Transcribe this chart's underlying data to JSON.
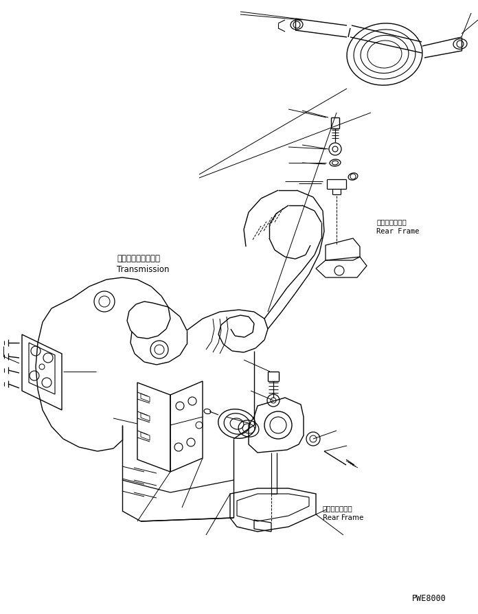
{
  "background_color": "#ffffff",
  "line_color": "#000000",
  "fig_width": 6.96,
  "fig_height": 8.95,
  "dpi": 100,
  "watermark": "PWE8000",
  "label_transmission_jp": "トランスミッション",
  "label_transmission_en": "Transmission",
  "label_rear_frame_jp": "リヤーフレーム",
  "label_rear_frame_en": "Rear Frame",
  "label_rear_frame_jp2": "リャーフレーム",
  "label_rear_frame_en2": "Rear Frame"
}
